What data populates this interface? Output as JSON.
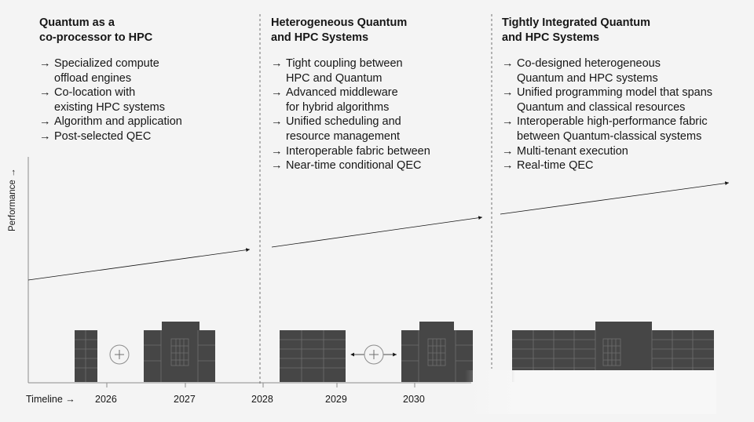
{
  "stages": [
    {
      "title": "Quantum as a\nco-processor to HPC",
      "bullets": [
        "Specialized compute\noffload engines",
        "Co-location with\nexisting HPC systems",
        "Algorithm and application",
        "Post-selected QEC"
      ]
    },
    {
      "title": "Heterogeneous Quantum\nand HPC Systems",
      "bullets": [
        "Tight coupling between\nHPC and Quantum",
        "Advanced middleware\nfor hybrid algorithms",
        "Unified scheduling and\nresource management",
        "Interoperable fabric between",
        "Near-time conditional QEC"
      ]
    },
    {
      "title": "Tightly Integrated Quantum\nand HPC Systems",
      "bullets": [
        "Co-designed heterogeneous\nQuantum and HPC systems",
        "Unified programming model that spans\nQuantum and classical resources",
        "Interoperable high-performance fabric\nbetween Quantum-classical systems",
        "Multi-tenant execution",
        "Real-time QEC"
      ]
    }
  ],
  "bullet_arrow": "→",
  "axis": {
    "y_label": "Performance →",
    "x_label": "Timeline →",
    "years": [
      "2026",
      "2027",
      "2028",
      "2029",
      "2030"
    ]
  },
  "icons": {
    "combine_symbol": "plus-circle-icon",
    "hardware": [
      "hpc-rack-icon",
      "quantum-system-icon"
    ]
  },
  "colors": {
    "background": "#f4f4f4",
    "text": "#161616",
    "hardware_fill": "#464646",
    "hardware_lines": "#6f6f6f",
    "axis_line": "#8d8d8d"
  }
}
